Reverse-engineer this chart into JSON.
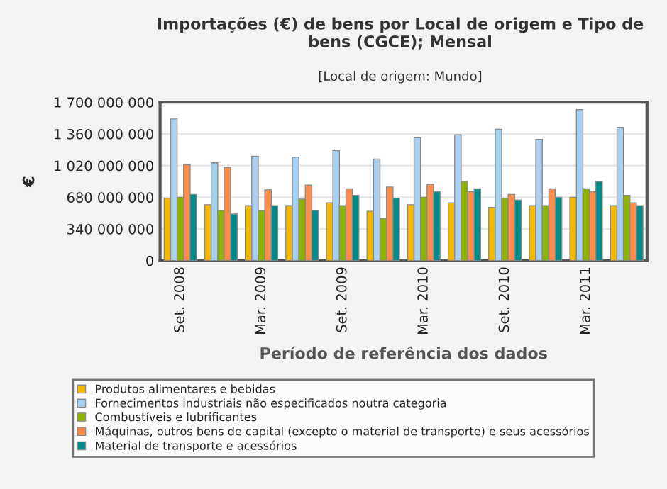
{
  "chart_data": {
    "type": "bar",
    "title": "Importações (€) de bens por Local de origem e Tipo de bens (CGCE); Mensal",
    "subtitle": "[Local de origem: Mundo]",
    "xlabel": "Período de referência dos dados",
    "ylabel": "€",
    "categories": [
      "Set. 2008",
      null,
      "Mar. 2009",
      null,
      "Set. 2009",
      null,
      "Mar. 2010",
      null,
      "Set. 2010",
      null,
      "Mar. 2011",
      null
    ],
    "series": [
      {
        "name": "Produtos alimentares e bebidas",
        "color": "#f5b800",
        "values": [
          670000000,
          600000000,
          590000000,
          590000000,
          620000000,
          530000000,
          600000000,
          620000000,
          570000000,
          590000000,
          680000000,
          590000000
        ]
      },
      {
        "name": "Fornecimentos industriais não especificados noutra categoria",
        "color": "#a8d0f0",
        "values": [
          1520000000,
          1050000000,
          1120000000,
          1110000000,
          1180000000,
          1090000000,
          1320000000,
          1350000000,
          1410000000,
          1300000000,
          1620000000,
          1430000000
        ]
      },
      {
        "name": "Combustíveis e lubrificantes",
        "color": "#8cb400",
        "values": [
          680000000,
          540000000,
          540000000,
          660000000,
          590000000,
          450000000,
          680000000,
          850000000,
          670000000,
          590000000,
          770000000,
          700000000
        ]
      },
      {
        "name": "Máquinas, outros bens de capital (excepto o material de transporte) e seus acessórios",
        "color": "#ff8c4a",
        "values": [
          1030000000,
          1000000000,
          760000000,
          810000000,
          770000000,
          790000000,
          820000000,
          740000000,
          710000000,
          770000000,
          740000000,
          620000000
        ]
      },
      {
        "name": "Material de transporte e acessórios",
        "color": "#008b8b",
        "values": [
          710000000,
          500000000,
          590000000,
          540000000,
          700000000,
          670000000,
          740000000,
          770000000,
          650000000,
          680000000,
          850000000,
          590000000
        ]
      }
    ],
    "ylim": [
      0,
      1700000000
    ],
    "yticks": [
      0,
      {
        "value": 340000000,
        "label": "340 000 000"
      },
      {
        "value": 680000000,
        "label": "680 000 000"
      },
      {
        "value": 1020000000,
        "label": "1 020 000 000"
      },
      {
        "value": 1360000000,
        "label": "1 360 000 000"
      },
      {
        "value": 1700000000,
        "label": "1 700 000 000"
      }
    ],
    "grid": "y",
    "legend": "bottom"
  }
}
